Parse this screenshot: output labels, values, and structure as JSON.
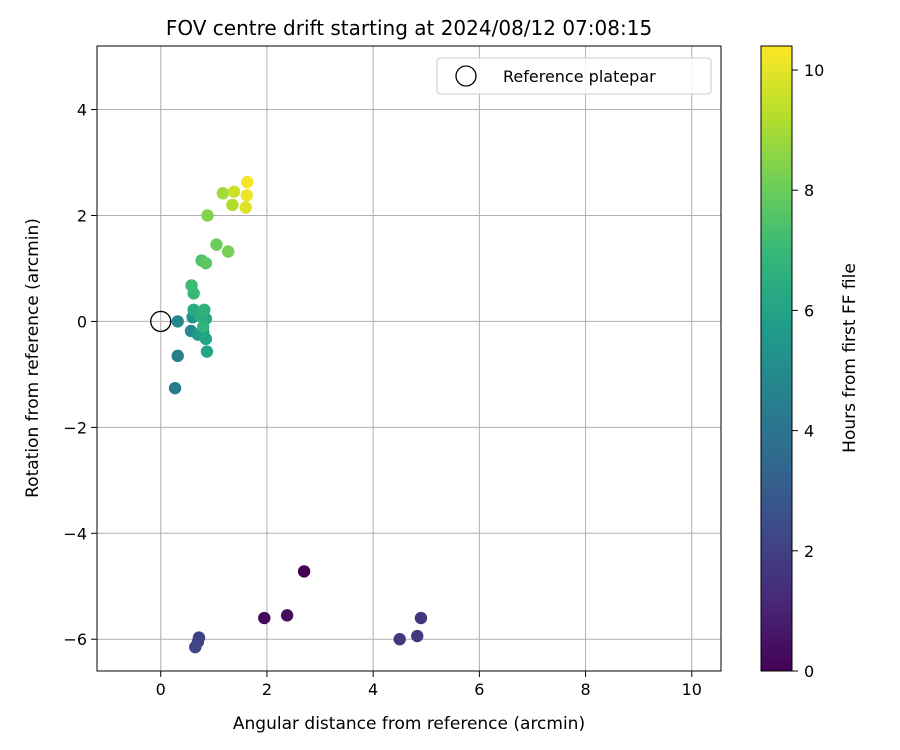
{
  "chart_data": {
    "type": "scatter",
    "title": "FOV centre drift starting at 2024/08/12 07:08:15",
    "xlabel": "Angular distance from reference (arcmin)",
    "ylabel": "Rotation from reference (arcmin)",
    "xlim": [
      -1.2,
      10.55
    ],
    "ylim": [
      -6.6,
      5.2
    ],
    "xticks": [
      0,
      2,
      4,
      6,
      8,
      10
    ],
    "yticks": [
      -6,
      -4,
      -2,
      0,
      2,
      4
    ],
    "xtick_labels": [
      "0",
      "2",
      "4",
      "6",
      "8",
      "10"
    ],
    "ytick_labels": [
      "−6",
      "−4",
      "−2",
      "0",
      "2",
      "4"
    ],
    "grid": true,
    "legend": {
      "position": "top-right",
      "entries": [
        "Reference platepar"
      ]
    },
    "reference_point": {
      "x": 0,
      "y": 0,
      "marker": "open-circle",
      "color": "#000000"
    },
    "colorbar": {
      "label": "Hours from first FF file",
      "min": 0,
      "max": 10.4,
      "ticks": [
        0,
        2,
        4,
        6,
        8,
        10
      ],
      "tick_labels": [
        "0",
        "2",
        "4",
        "6",
        "8",
        "10"
      ],
      "colormap": "viridis",
      "colormap_stops": [
        "#440154",
        "#482878",
        "#3e4989",
        "#31688e",
        "#26828e",
        "#1f9e89",
        "#35b779",
        "#6ece58",
        "#b5de2b",
        "#fde725"
      ]
    },
    "series": [
      {
        "points": [
          {
            "x": 2.7,
            "y": -4.72,
            "c": 0.0
          },
          {
            "x": 1.95,
            "y": -5.6,
            "c": 0.2
          },
          {
            "x": 2.38,
            "y": -5.55,
            "c": 0.4
          },
          {
            "x": 4.9,
            "y": -5.6,
            "c": 1.6
          },
          {
            "x": 4.83,
            "y": -5.94,
            "c": 1.7
          },
          {
            "x": 4.5,
            "y": -6.0,
            "c": 1.8
          },
          {
            "x": 0.72,
            "y": -5.97,
            "c": 2.0
          },
          {
            "x": 0.7,
            "y": -6.05,
            "c": 2.1
          },
          {
            "x": 0.65,
            "y": -6.15,
            "c": 2.2
          },
          {
            "x": 0.27,
            "y": -1.26,
            "c": 4.3
          },
          {
            "x": 0.32,
            "y": -0.65,
            "c": 4.5
          },
          {
            "x": 0.32,
            "y": 0.0,
            "c": 4.8
          },
          {
            "x": 0.57,
            "y": -0.18,
            "c": 5.0
          },
          {
            "x": 0.6,
            "y": 0.08,
            "c": 5.4
          },
          {
            "x": 0.7,
            "y": -0.25,
            "c": 5.6
          },
          {
            "x": 0.8,
            "y": -0.2,
            "c": 5.8
          },
          {
            "x": 0.85,
            "y": -0.33,
            "c": 6.0
          },
          {
            "x": 0.87,
            "y": -0.57,
            "c": 6.1
          },
          {
            "x": 0.85,
            "y": 0.05,
            "c": 6.2
          },
          {
            "x": 0.62,
            "y": 0.22,
            "c": 6.4
          },
          {
            "x": 0.75,
            "y": 0.1,
            "c": 6.5
          },
          {
            "x": 0.82,
            "y": 0.22,
            "c": 6.7
          },
          {
            "x": 0.8,
            "y": -0.1,
            "c": 6.8
          },
          {
            "x": 0.62,
            "y": 0.53,
            "c": 7.0
          },
          {
            "x": 0.58,
            "y": 0.68,
            "c": 7.1
          },
          {
            "x": 0.77,
            "y": 1.15,
            "c": 7.5
          },
          {
            "x": 0.85,
            "y": 1.1,
            "c": 7.7
          },
          {
            "x": 1.05,
            "y": 1.45,
            "c": 8.0
          },
          {
            "x": 1.27,
            "y": 1.32,
            "c": 8.2
          },
          {
            "x": 0.88,
            "y": 2.0,
            "c": 8.4
          },
          {
            "x": 1.17,
            "y": 2.42,
            "c": 8.9
          },
          {
            "x": 1.35,
            "y": 2.2,
            "c": 9.2
          },
          {
            "x": 1.38,
            "y": 2.45,
            "c": 9.6
          },
          {
            "x": 1.6,
            "y": 2.15,
            "c": 9.9
          },
          {
            "x": 1.62,
            "y": 2.38,
            "c": 10.1
          },
          {
            "x": 1.63,
            "y": 2.63,
            "c": 10.3
          }
        ]
      }
    ]
  }
}
